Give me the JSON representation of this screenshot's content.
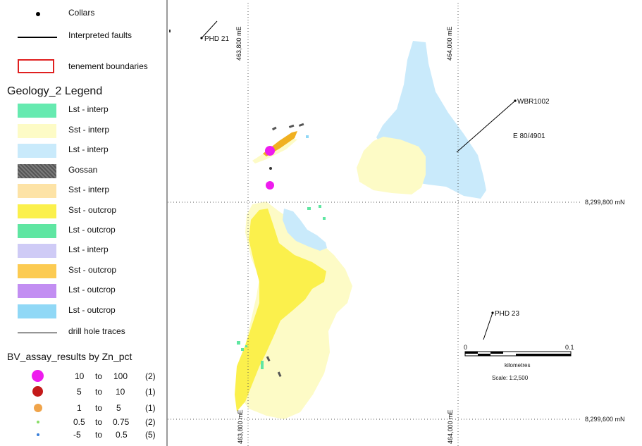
{
  "legend": {
    "collars": "Collars",
    "faults": "Interpreted faults",
    "tenement": "tenement boundaries",
    "geology_title": "Geology_2 Legend",
    "geology_items": [
      {
        "label": "Lst - interp",
        "color": "#66eab0"
      },
      {
        "label": "Sst - interp",
        "color": "#fdfbc6"
      },
      {
        "label": "Lst - interp",
        "color": "#c9eafb"
      },
      {
        "label": "Gossan",
        "color": "#6b6b6b"
      },
      {
        "label": "Sst - interp",
        "color": "#fde3a6"
      },
      {
        "label": "Sst - outcrop",
        "color": "#fbf04c"
      },
      {
        "label": "Lst - outcrop",
        "color": "#5fe6a2"
      },
      {
        "label": "Lst - interp",
        "color": "#cfcbf6"
      },
      {
        "label": "Sst - outcrop",
        "color": "#fccb52"
      },
      {
        "label": "Lst - outcrop",
        "color": "#c28ef2"
      },
      {
        "label": "Lst - outcrop",
        "color": "#90d8f6"
      }
    ],
    "drill_traces": "drill hole traces",
    "bv_title": "BV_assay_results by Zn_pct",
    "assay_classes": [
      {
        "from": "10",
        "to_word": "to",
        "to": "100",
        "count": "(2)",
        "color": "#ee1cee"
      },
      {
        "from": "5",
        "to_word": "to",
        "to": "10",
        "count": "(1)",
        "color": "#c41a1a"
      },
      {
        "from": "1",
        "to_word": "to",
        "to": "5",
        "count": "(1)",
        "color": "#f0a44a"
      },
      {
        "from": "0.5",
        "to_word": "to",
        "to": "0.75",
        "count": "(2)",
        "color": "#88dd66"
      },
      {
        "from": "-5",
        "to_word": "to",
        "to": "0.5",
        "count": "(5)",
        "color": "#3a7fd9"
      }
    ]
  },
  "map": {
    "grid_labels": {
      "e1_top": "463,800 mE",
      "e2_top": "464,000 mE",
      "e1_bottom": "463,800 mE",
      "e2_bottom": "464,000 mE",
      "n1": "8,299,800 mN",
      "n2": "8,299,600 mN"
    },
    "holes": {
      "phd21": "PHD 21",
      "wbr1002": "WBR1002",
      "phd23": "PHD 23"
    },
    "tenement_label": "E 80/4901",
    "scale": {
      "start": "0",
      "end": "0.1",
      "units": "kilometres",
      "ratio": "Scale: 1:2,500"
    }
  }
}
